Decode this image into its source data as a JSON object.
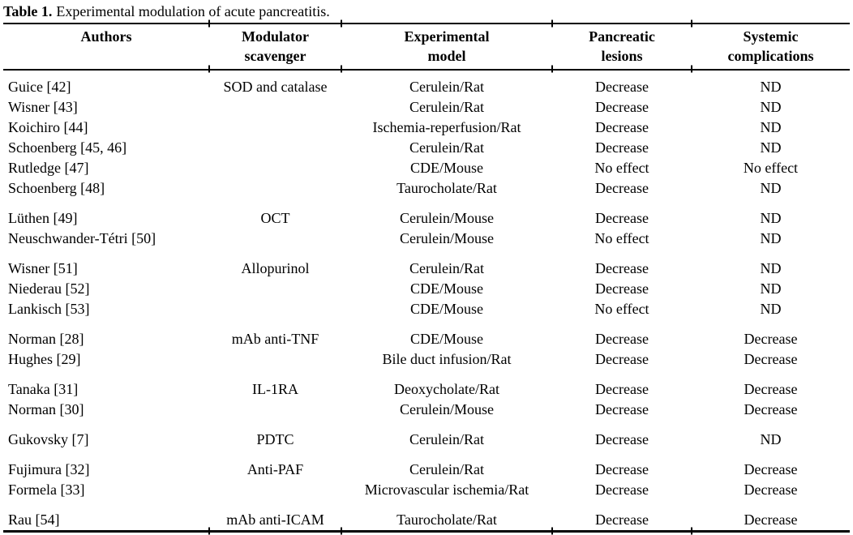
{
  "title": {
    "label": "Table 1.",
    "text": "Experimental modulation of acute pancreatitis."
  },
  "columns": [
    {
      "id": "author",
      "lines": [
        "Authors",
        ""
      ]
    },
    {
      "id": "modulator",
      "lines": [
        "Modulator",
        "scavenger"
      ]
    },
    {
      "id": "model",
      "lines": [
        "Experimental",
        "model"
      ]
    },
    {
      "id": "lesions",
      "lines": [
        "Pancreatic",
        "lesions"
      ]
    },
    {
      "id": "systemic",
      "lines": [
        "Systemic",
        "complications"
      ]
    }
  ],
  "groups": [
    {
      "rows": [
        {
          "author": "Guice [42]",
          "modulator": "SOD and catalase",
          "model": "Cerulein/Rat",
          "lesions": "Decrease",
          "systemic": "ND"
        },
        {
          "author": "Wisner [43]",
          "modulator": "",
          "model": "Cerulein/Rat",
          "lesions": "Decrease",
          "systemic": "ND"
        },
        {
          "author": "Koichiro [44]",
          "modulator": "",
          "model": "Ischemia-reperfusion/Rat",
          "lesions": "Decrease",
          "systemic": "ND"
        },
        {
          "author": "Schoenberg [45, 46]",
          "modulator": "",
          "model": "Cerulein/Rat",
          "lesions": "Decrease",
          "systemic": "ND"
        },
        {
          "author": "Rutledge [47]",
          "modulator": "",
          "model": "CDE/Mouse",
          "lesions": "No effect",
          "systemic": "No effect"
        },
        {
          "author": "Schoenberg [48]",
          "modulator": "",
          "model": "Taurocholate/Rat",
          "lesions": "Decrease",
          "systemic": "ND"
        }
      ]
    },
    {
      "rows": [
        {
          "author": "Lüthen [49]",
          "modulator": "OCT",
          "model": "Cerulein/Mouse",
          "lesions": "Decrease",
          "systemic": "ND"
        },
        {
          "author": "Neuschwander-Tétri [50]",
          "modulator": "",
          "model": "Cerulein/Mouse",
          "lesions": "No effect",
          "systemic": "ND"
        }
      ]
    },
    {
      "rows": [
        {
          "author": "Wisner [51]",
          "modulator": "Allopurinol",
          "model": "Cerulein/Rat",
          "lesions": "Decrease",
          "systemic": "ND"
        },
        {
          "author": "Niederau [52]",
          "modulator": "",
          "model": "CDE/Mouse",
          "lesions": "Decrease",
          "systemic": "ND"
        },
        {
          "author": "Lankisch [53]",
          "modulator": "",
          "model": "CDE/Mouse",
          "lesions": "No effect",
          "systemic": "ND"
        }
      ]
    },
    {
      "rows": [
        {
          "author": "Norman [28]",
          "modulator": "mAb anti-TNF",
          "model": "CDE/Mouse",
          "lesions": "Decrease",
          "systemic": "Decrease"
        },
        {
          "author": "Hughes [29]",
          "modulator": "",
          "model": "Bile duct infusion/Rat",
          "lesions": "Decrease",
          "systemic": "Decrease"
        }
      ]
    },
    {
      "rows": [
        {
          "author": "Tanaka [31]",
          "modulator": "IL-1RA",
          "model": "Deoxycholate/Rat",
          "lesions": "Decrease",
          "systemic": "Decrease"
        },
        {
          "author": "Norman [30]",
          "modulator": "",
          "model": "Cerulein/Mouse",
          "lesions": "Decrease",
          "systemic": "Decrease"
        }
      ]
    },
    {
      "rows": [
        {
          "author": "Gukovsky [7]",
          "modulator": "PDTC",
          "model": "Cerulein/Rat",
          "lesions": "Decrease",
          "systemic": "ND"
        }
      ]
    },
    {
      "rows": [
        {
          "author": "Fujimura [32]",
          "modulator": "Anti-PAF",
          "model": "Cerulein/Rat",
          "lesions": "Decrease",
          "systemic": "Decrease"
        },
        {
          "author": "Formela [33]",
          "modulator": "",
          "model": "Microvascular ischemia/Rat",
          "lesions": "Decrease",
          "systemic": "Decrease"
        }
      ]
    },
    {
      "rows": [
        {
          "author": "Rau [54]",
          "modulator": "mAb anti-ICAM",
          "model": "Taurocholate/Rat",
          "lesions": "Decrease",
          "systemic": "Decrease"
        }
      ]
    }
  ]
}
